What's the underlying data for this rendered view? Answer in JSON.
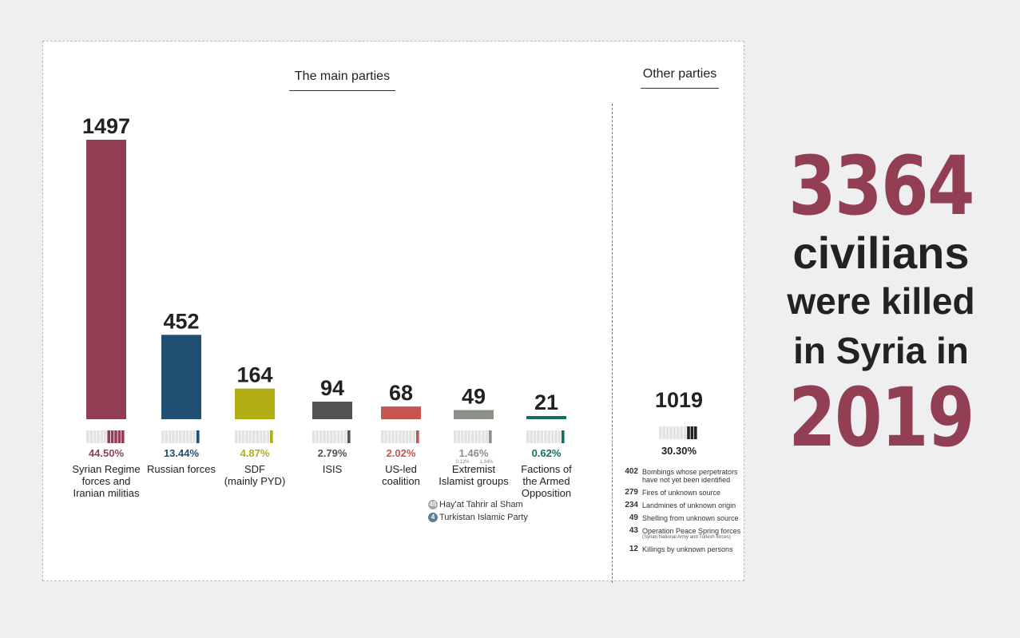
{
  "headline": {
    "total": "3364",
    "line1": "civilians",
    "line2": "were killed",
    "line3": "in Syria in",
    "year": "2019"
  },
  "sections": {
    "main": "The main parties",
    "other": "Other parties"
  },
  "colors": {
    "regime": "#923f53",
    "russia": "#1f4f72",
    "sdf": "#b2ad13",
    "isis": "#555452",
    "coalition": "#c4564f",
    "extremist": "#8b9089",
    "opposition": "#11705f",
    "other": "#222222"
  },
  "chart_data": {
    "type": "bar",
    "categories": [
      "Syrian Regime forces and Iranian militias",
      "Russian forces",
      "SDF (mainly PYD)",
      "ISIS",
      "US-led coalition",
      "Extremist Islamist groups",
      "Factions of the Armed Opposition"
    ],
    "category_lines": [
      [
        "Syrian Regime",
        "forces and",
        "Iranian militias"
      ],
      [
        "Russian forces"
      ],
      [
        "SDF",
        "(mainly PYD)"
      ],
      [
        "ISIS"
      ],
      [
        "US-led",
        "coalition"
      ],
      [
        "Extremist",
        "Islamist groups"
      ],
      [
        "Factions of",
        "the Armed",
        "Opposition"
      ]
    ],
    "values": [
      1497,
      452,
      164,
      94,
      68,
      49,
      21
    ],
    "value_labels": [
      "1497",
      "452",
      "164",
      "94",
      "68",
      "49",
      "21"
    ],
    "percentages": [
      "44.50%",
      "13.44%",
      "4.87%",
      "2.79%",
      "2.02%",
      "1.46%",
      "0.62%"
    ],
    "percent_values": [
      44.5,
      13.44,
      4.87,
      2.79,
      2.02,
      1.46,
      0.62
    ],
    "extremist_breakdown": {
      "percent_labels": [
        "0.12%",
        "1.34%"
      ],
      "groups": [
        {
          "count": "45",
          "name": "Hay'at Tahrir al Sham"
        },
        {
          "count": "4",
          "name": "Turkistan Islamic Party"
        }
      ]
    },
    "ylim": [
      0,
      1497
    ]
  },
  "other_parties": {
    "total": "1019",
    "percentage": "30.30%",
    "percent_value": 30.3,
    "items": [
      {
        "count": "402",
        "label": "Bombings whose perpetrators have not yet been identified",
        "sub": ""
      },
      {
        "count": "279",
        "label": "Fires of unknown source",
        "sub": ""
      },
      {
        "count": "234",
        "label": "Landmines of unknown origin",
        "sub": ""
      },
      {
        "count": "49",
        "label": "Shelling from unknown source",
        "sub": ""
      },
      {
        "count": "43",
        "label": "Operation Peace Spring forces",
        "sub": "(Syrian National Army and Turkish forces)"
      },
      {
        "count": "12",
        "label": "Killings by unknown persons",
        "sub": ""
      }
    ]
  }
}
